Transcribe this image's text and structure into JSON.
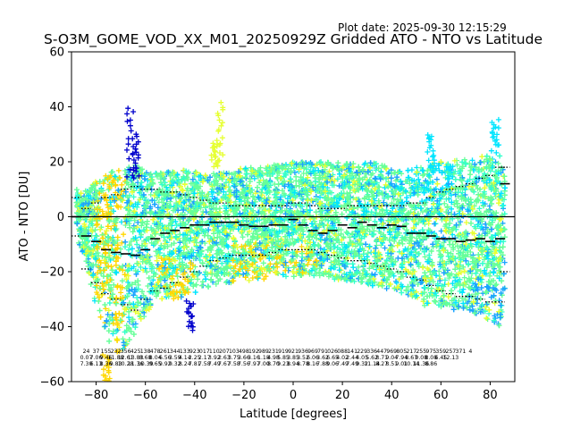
{
  "chart_data": {
    "type": "scatter",
    "title": "S-O3M_GOME_VOD_XX_M01_20250929Z Gridded ATO - NTO vs Latitude",
    "plot_date": "Plot date: 2025-09-30 12:15:29",
    "xlabel": "Latitude [degrees]",
    "ylabel": "ATO - NTO [DU]",
    "xlim": [
      -90,
      90
    ],
    "ylim": [
      -60,
      60
    ],
    "xticks": [
      -80,
      -60,
      -40,
      -20,
      0,
      20,
      40,
      60,
      80
    ],
    "yticks": [
      -60,
      -40,
      -20,
      0,
      20,
      40,
      60
    ],
    "xtick_labels": [
      "−80",
      "−60",
      "−40",
      "−20",
      "0",
      "20",
      "40",
      "60",
      "80"
    ],
    "ytick_labels": [
      "−60",
      "−40",
      "−20",
      "0",
      "20",
      "40",
      "60"
    ],
    "marker": "+",
    "colors": {
      "green": "#66ff99",
      "teal": "#33ffcc",
      "cyan": "#00e5ff",
      "azure": "#1aa3ff",
      "blue": "#0000cc",
      "yellow": "#ffd700",
      "lightyellow": "#e6ff33",
      "zero_line": "#000000",
      "mean_line": "#000000"
    },
    "envelope": {
      "lat": [
        -88,
        -84,
        -80,
        -76,
        -72,
        -68,
        -64,
        -60,
        -56,
        -52,
        -48,
        -44,
        -40,
        -36,
        -32,
        -28,
        -24,
        -20,
        -16,
        -12,
        -8,
        -4,
        0,
        4,
        8,
        12,
        16,
        20,
        24,
        28,
        32,
        36,
        40,
        44,
        48,
        52,
        56,
        60,
        64,
        68,
        72,
        76,
        80,
        84,
        86
      ],
      "upper": [
        10,
        10,
        13,
        15,
        18,
        18,
        19,
        17,
        16,
        16,
        17,
        17,
        17,
        16,
        16,
        16,
        17,
        18,
        18,
        18,
        19,
        19,
        20,
        20,
        20,
        20,
        20,
        20,
        20,
        20,
        20,
        19,
        18,
        18,
        18,
        18,
        19,
        20,
        20,
        21,
        21,
        22,
        23,
        24,
        15
      ],
      "lower": [
        -8,
        -18,
        -34,
        -44,
        -50,
        -48,
        -42,
        -36,
        -32,
        -30,
        -30,
        -29,
        -28,
        -26,
        -25,
        -24,
        -24,
        -24,
        -23,
        -23,
        -22,
        -22,
        -22,
        -22,
        -22,
        -22,
        -23,
        -23,
        -24,
        -24,
        -25,
        -26,
        -27,
        -28,
        -30,
        -32,
        -34,
        -34,
        -34,
        -34,
        -35,
        -36,
        -38,
        -40,
        -30
      ]
    },
    "mean_profile": {
      "lat": [
        -88,
        -84,
        -80,
        -76,
        -72,
        -68,
        -64,
        -60,
        -56,
        -52,
        -48,
        -44,
        -40,
        -36,
        -32,
        -28,
        -24,
        -20,
        -16,
        -12,
        -8,
        -4,
        0,
        4,
        8,
        12,
        16,
        20,
        24,
        28,
        32,
        36,
        40,
        44,
        48,
        52,
        56,
        60,
        64,
        68,
        72,
        76,
        80,
        84,
        86
      ],
      "mean": [
        0,
        -7,
        -9,
        -12,
        -13,
        -13.5,
        -14,
        -12,
        -8,
        -6,
        -5,
        -4,
        -3,
        -3,
        -2,
        -2,
        -2,
        -3,
        -3.5,
        -3.5,
        -3,
        -3,
        -1,
        -3,
        -5,
        -6,
        -5,
        -3,
        -4,
        -2,
        -3,
        -4,
        -3,
        -3.5,
        -6,
        -6,
        -7,
        -8,
        -8,
        -9,
        -8.5,
        -8,
        -9,
        -8,
        12
      ],
      "std_upper": [
        7,
        3,
        5,
        7,
        8,
        10,
        11,
        10,
        10,
        9,
        9,
        8,
        7,
        6,
        5,
        5,
        4,
        4,
        4,
        4,
        4,
        4,
        5,
        5,
        4,
        3,
        3,
        3,
        4,
        4,
        4,
        4,
        4,
        4,
        5,
        5,
        7,
        9,
        10,
        11,
        12,
        14,
        15,
        18,
        18
      ],
      "std_lower": [
        -7,
        -19,
        -24,
        -28,
        -30,
        -32,
        -34,
        -30,
        -27,
        -26,
        -24,
        -22,
        -20,
        -18,
        -16,
        -15,
        -14,
        -14,
        -14,
        -14,
        -13,
        -12,
        -12,
        -12,
        -12,
        -13,
        -14,
        -15,
        -16,
        -16,
        -17,
        -18,
        -19,
        -20,
        -22,
        -23,
        -25,
        -27,
        -28,
        -29,
        -29,
        -30,
        -31,
        -31,
        -20
      ]
    },
    "spikes": [
      {
        "lat": -66,
        "from": 14,
        "to": 40,
        "color": "blue"
      },
      {
        "lat": -64,
        "from": 14,
        "to": 30,
        "color": "blue"
      },
      {
        "lat": -76,
        "from": -50,
        "to": -60,
        "color": "yellow"
      },
      {
        "lat": -42,
        "from": -30,
        "to": -41,
        "color": "blue"
      },
      {
        "lat": -32,
        "from": 18,
        "to": 27,
        "color": "lightyellow"
      },
      {
        "lat": -30,
        "from": 20,
        "to": 42,
        "color": "lightyellow"
      },
      {
        "lat": 56,
        "from": 18,
        "to": 30,
        "color": "cyan"
      },
      {
        "lat": 82,
        "from": 24,
        "to": 35,
        "color": "cyan"
      }
    ],
    "stats_bins": {
      "lat": [
        -84,
        -80,
        -76,
        -72,
        -68,
        -64,
        -60,
        -56,
        -52,
        -48,
        -44,
        -40,
        -36,
        -32,
        -28,
        -24,
        -20,
        -16,
        -12,
        -8,
        -4,
        0,
        4,
        8,
        12,
        16,
        20,
        24,
        28,
        32,
        36,
        40,
        44,
        48,
        52,
        56,
        60,
        64,
        68,
        72,
        76,
        80,
        84
      ],
      "count": [
        "24",
        "37",
        "155",
        "232",
        "356",
        "425",
        "138",
        "478",
        "261",
        "344",
        "133",
        "923",
        "017",
        "110",
        "207",
        "103",
        "498",
        "192",
        "989",
        "231",
        "919",
        "921",
        "936",
        "969",
        "791",
        "026",
        "088",
        "141",
        "229",
        "336",
        "447",
        "969",
        "805",
        "217",
        "255",
        "975",
        "359",
        "257",
        "371",
        "4",
        "",
        "",
        ""
      ],
      "mean": [
        "0.07",
        "7.06",
        "9.46",
        "11.88",
        "12.61",
        "13.83",
        "8.68",
        "8.04",
        "6.56",
        "3.59",
        "4.14",
        "2.25",
        "2.17",
        "3.92",
        "2.63",
        "3.75",
        "3.66",
        "3.16",
        "1.18",
        "4.98",
        "5.85",
        "3.85",
        "3.52",
        "6.06",
        "3.62",
        "6.65",
        "4.02",
        "2.44",
        "4.05",
        "5.62",
        "8.71",
        "9.04",
        "7.94",
        "8.67",
        "9.08",
        "8.08",
        "6.45",
        "12.13",
        "",
        "",
        "",
        "",
        ""
      ],
      "std": [
        "7.30",
        "6.13",
        "8.36",
        "9.83",
        "10.28",
        "11.36",
        "10.39",
        "9.65",
        "9.92",
        "9.32",
        "8.24",
        "7.81",
        "7.58",
        "7.49",
        "7.67",
        "7.58",
        "7.56",
        "7.97",
        "7.00",
        "8.70",
        "9.23",
        "8.94",
        "8.78",
        "8.16",
        "7.88",
        "9.06",
        "7.49",
        "7.49",
        "9.32",
        "11.14",
        "8.27",
        "8.51",
        "9.01",
        "10.14",
        "11.36",
        "8.86",
        "",
        "",
        "",
        "",
        "",
        "",
        ""
      ]
    }
  }
}
